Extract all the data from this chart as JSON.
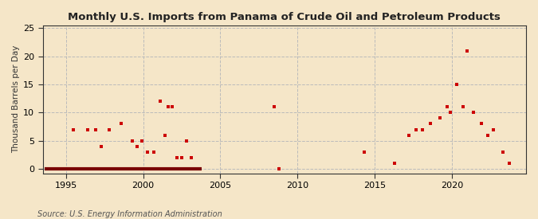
{
  "title": "Monthly U.S. Imports from Panama of Crude Oil and Petroleum Products",
  "ylabel": "Thousand Barrels per Day",
  "source_text": "Source: U.S. Energy Information Administration",
  "background_color": "#f5e6c8",
  "scatter_color": "#cc0000",
  "xlim": [
    1993.5,
    2024.8
  ],
  "ylim": [
    -0.8,
    25.5
  ],
  "yticks": [
    0,
    5,
    10,
    15,
    20,
    25
  ],
  "xticks": [
    1995,
    2000,
    2005,
    2010,
    2015,
    2020
  ],
  "data_x": [
    1995.5,
    1996.4,
    1996.9,
    1997.3,
    1997.8,
    1998.6,
    1999.3,
    1999.6,
    1999.9,
    2000.3,
    2000.7,
    2001.1,
    2001.4,
    2001.6,
    2001.9,
    2002.2,
    2002.5,
    2002.8,
    2003.1,
    2008.5,
    2008.8,
    2014.3,
    2016.3,
    2017.2,
    2017.7,
    2018.1,
    2018.6,
    2019.2,
    2019.7,
    2019.9,
    2020.3,
    2020.7,
    2021.0,
    2021.4,
    2021.9,
    2022.3,
    2022.7,
    2023.3,
    2023.7
  ],
  "data_y": [
    7,
    7,
    7,
    4,
    7,
    8,
    5,
    4,
    5,
    3,
    3,
    12,
    6,
    11,
    11,
    2,
    2,
    5,
    2,
    11,
    0,
    3,
    1,
    6,
    7,
    7,
    8,
    9,
    11,
    10,
    15,
    11,
    21,
    10,
    8,
    6,
    7,
    3,
    1
  ],
  "zero_bar_x1": 1993.6,
  "zero_bar_x2": 2003.8,
  "zero_bar2_x1": 2008.75,
  "zero_bar2_x2": 2008.85
}
